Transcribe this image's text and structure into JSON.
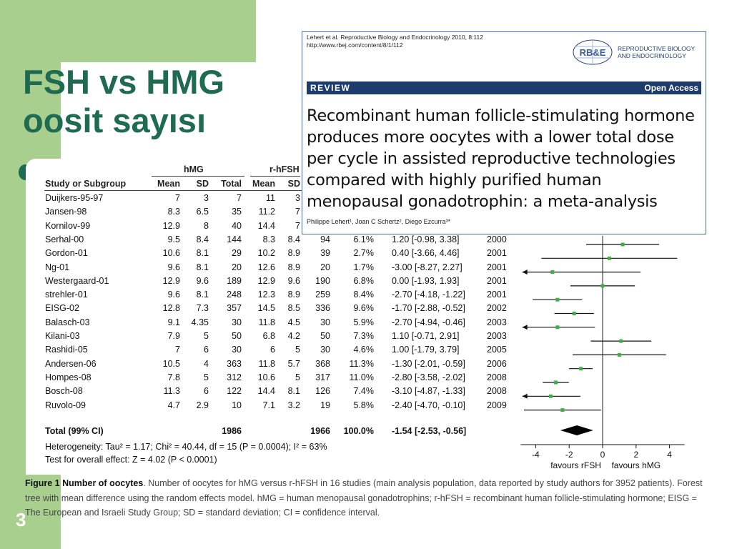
{
  "slide": {
    "title_line1": "FSH vs HMG",
    "title_line2": "oosit sayısı",
    "page_number": "3"
  },
  "paper": {
    "citation_line1": "Lehert et al. Reproductive Biology and Endocrinology 2010, 8:112",
    "citation_line2": "http://www.rbej.com/content/8/1/112",
    "logo_text": "RB&E",
    "journal_line1": "REPRODUCTIVE BIOLOGY",
    "journal_line2": "AND ENDOCRINOLOGY",
    "section": "REVIEW",
    "access": "Open Access",
    "title": "Recombinant human follicle-stimulating hormone produces more oocytes with a lower total dose per cycle in assisted reproductive technologies compared with highly purified human menopausal gonadotrophin: a meta-analysis",
    "authors": "Philippe Lehert¹, Joan C Schertz², Diego Ezcurra³*"
  },
  "table": {
    "group1": "hMG",
    "group2": "r-hFSH",
    "headers": [
      "Study or Subgroup",
      "Mean",
      "SD",
      "Total",
      "Mean",
      "SD"
    ],
    "rows": [
      {
        "study": "Duijkers-95-97",
        "m1": "7",
        "sd1": "3",
        "n1": "7",
        "m2": "11",
        "sd2": "3",
        "n2": "",
        "w": "",
        "ci": "",
        "yr": ""
      },
      {
        "study": "Jansen-98",
        "m1": "8.3",
        "sd1": "6.5",
        "n1": "35",
        "m2": "11.2",
        "sd2": "7",
        "n2": "",
        "w": "",
        "ci": "",
        "yr": ""
      },
      {
        "study": "Kornilov-99",
        "m1": "12.9",
        "sd1": "8",
        "n1": "40",
        "m2": "14.4",
        "sd2": "7",
        "n2": "",
        "w": "",
        "ci": "",
        "yr": ""
      },
      {
        "study": "Serhal-00",
        "m1": "9.5",
        "sd1": "8.4",
        "n1": "144",
        "m2": "8.3",
        "sd2": "8.4",
        "n2": "94",
        "w": "6.1%",
        "ci": "1.20 [-0.98, 3.38]",
        "yr": "2000"
      },
      {
        "study": "Gordon-01",
        "m1": "10.6",
        "sd1": "8.1",
        "n1": "29",
        "m2": "10.2",
        "sd2": "8.9",
        "n2": "39",
        "w": "2.7%",
        "ci": "0.40 [-3.66, 4.46]",
        "yr": "2001"
      },
      {
        "study": "Ng-01",
        "m1": "9.6",
        "sd1": "8.1",
        "n1": "20",
        "m2": "12.6",
        "sd2": "8.9",
        "n2": "20",
        "w": "1.7%",
        "ci": "-3.00 [-8.27, 2.27]",
        "yr": "2001"
      },
      {
        "study": "Westergaard-01",
        "m1": "12.9",
        "sd1": "9.6",
        "n1": "189",
        "m2": "12.9",
        "sd2": "9.6",
        "n2": "190",
        "w": "6.8%",
        "ci": "0.00 [-1.93, 1.93]",
        "yr": "2001"
      },
      {
        "study": "strehler-01",
        "m1": "9.6",
        "sd1": "8.1",
        "n1": "248",
        "m2": "12.3",
        "sd2": "8.9",
        "n2": "259",
        "w": "8.4%",
        "ci": "-2.70 [-4.18, -1.22]",
        "yr": "2001"
      },
      {
        "study": "EISG-02",
        "m1": "12.8",
        "sd1": "7.3",
        "n1": "357",
        "m2": "14.5",
        "sd2": "8.5",
        "n2": "336",
        "w": "9.6%",
        "ci": "-1.70 [-2.88, -0.52]",
        "yr": "2002"
      },
      {
        "study": "Balasch-03",
        "m1": "9.1",
        "sd1": "4.35",
        "n1": "30",
        "m2": "11.8",
        "sd2": "4.5",
        "n2": "30",
        "w": "5.9%",
        "ci": "-2.70 [-4.94, -0.46]",
        "yr": "2003"
      },
      {
        "study": "Kilani-03",
        "m1": "7.9",
        "sd1": "5",
        "n1": "50",
        "m2": "6.8",
        "sd2": "4.2",
        "n2": "50",
        "w": "7.3%",
        "ci": "1.10 [-0.71, 2.91]",
        "yr": "2003"
      },
      {
        "study": "Rashidi-05",
        "m1": "7",
        "sd1": "6",
        "n1": "30",
        "m2": "6",
        "sd2": "5",
        "n2": "30",
        "w": "4.6%",
        "ci": "1.00 [-1.79, 3.79]",
        "yr": "2005"
      },
      {
        "study": "Andersen-06",
        "m1": "10.5",
        "sd1": "4",
        "n1": "363",
        "m2": "11.8",
        "sd2": "5.7",
        "n2": "368",
        "w": "11.3%",
        "ci": "-1.30 [-2.01, -0.59]",
        "yr": "2006"
      },
      {
        "study": "Hompes-08",
        "m1": "7.8",
        "sd1": "5",
        "n1": "312",
        "m2": "10.6",
        "sd2": "5",
        "n2": "317",
        "w": "11.0%",
        "ci": "-2.80 [-3.58, -2.02]",
        "yr": "2008"
      },
      {
        "study": "Bosch-08",
        "m1": "11.3",
        "sd1": "6",
        "n1": "122",
        "m2": "14.4",
        "sd2": "8.1",
        "n2": "126",
        "w": "7.4%",
        "ci": "-3.10 [-4.87, -1.33]",
        "yr": "2008"
      },
      {
        "study": "Ruvolo-09",
        "m1": "4.7",
        "sd1": "2.9",
        "n1": "10",
        "m2": "7.1",
        "sd2": "3.2",
        "n2": "19",
        "w": "5.8%",
        "ci": "-2.40 [-4.70, -0.10]",
        "yr": "2009"
      }
    ],
    "total": {
      "label": "Total (99% CI)",
      "n1": "1986",
      "n2": "1966",
      "w": "100.0%",
      "ci": "-1.54 [-2.53, -0.56]"
    },
    "heterogeneity": "Heterogeneity: Tau² = 1.17; Chi² = 40.44, df = 15 (P = 0.0004); I² = 63%",
    "overall_effect": "Test for overall effect: Z = 4.02 (P < 0.0001)"
  },
  "chart_data": {
    "type": "scatter",
    "title": "",
    "xlim": [
      -4.8,
      4.8
    ],
    "xticks": [
      "-4",
      "-2",
      "0",
      "2",
      "4"
    ],
    "xlabel_left": "favours rFSH",
    "xlabel_right": "favours hMG",
    "visible_studies": [
      {
        "study": "Serhal-00",
        "estimate": 1.2,
        "lo": -0.98,
        "hi": 3.38
      },
      {
        "study": "Gordon-01",
        "estimate": 0.4,
        "lo": -3.66,
        "hi": 4.46
      },
      {
        "study": "Ng-01",
        "estimate": -3.0,
        "lo": -8.27,
        "hi": 2.27
      },
      {
        "study": "Westergaard-01",
        "estimate": 0.0,
        "lo": -1.93,
        "hi": 1.93
      },
      {
        "study": "strehler-01",
        "estimate": -2.7,
        "lo": -4.18,
        "hi": -1.22
      },
      {
        "study": "EISG-02",
        "estimate": -1.7,
        "lo": -2.88,
        "hi": -0.52
      },
      {
        "study": "Balasch-03",
        "estimate": -2.7,
        "lo": -4.94,
        "hi": -0.46
      },
      {
        "study": "Kilani-03",
        "estimate": 1.1,
        "lo": -0.71,
        "hi": 2.91
      },
      {
        "study": "Rashidi-05",
        "estimate": 1.0,
        "lo": -1.79,
        "hi": 3.79
      },
      {
        "study": "Andersen-06",
        "estimate": -1.3,
        "lo": -2.01,
        "hi": -0.59
      },
      {
        "study": "Hompes-08",
        "estimate": -2.8,
        "lo": -3.58,
        "hi": -2.02
      },
      {
        "study": "Bosch-08",
        "estimate": -3.1,
        "lo": -4.87,
        "hi": -1.33
      },
      {
        "study": "Ruvolo-09",
        "estimate": -2.4,
        "lo": -4.7,
        "hi": -0.1
      }
    ],
    "pooled": {
      "estimate": -1.54,
      "lo": -2.53,
      "hi": -0.56
    }
  },
  "caption": {
    "label": "Figure 1 Number of oocytes",
    "text": ". Number of oocytes for hMG versus r-hFSH in 16 studies (main analysis population, data reported by study authors for 3952 patients). Forest tree with mean difference using the random effects model. hMG = human menopausal gonadotrophins; r-hFSH = recombinant human follicle-stimulating hormone; EISG = The European and Israeli Study Group; SD = standard deviation; CI = confidence interval."
  },
  "colors": {
    "green": "#a9cf8f",
    "title": "#1e6b52",
    "review_bar": "#1d3b6b",
    "marker": "#3cb043"
  }
}
